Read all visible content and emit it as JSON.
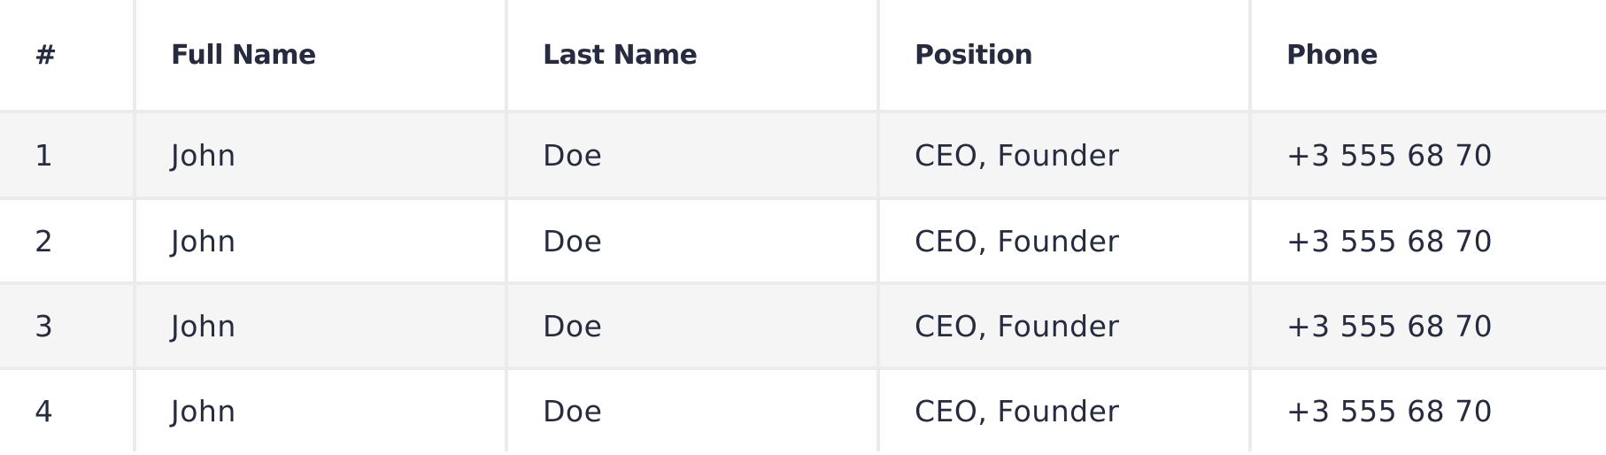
{
  "table": {
    "headers": [
      "#",
      "Full Name",
      "Last Name",
      "Position",
      "Phone"
    ],
    "rows": [
      [
        "1",
        "John",
        "Doe",
        "CEO, Founder",
        "+3 555 68 70"
      ],
      [
        "2",
        "John",
        "Doe",
        "CEO, Founder",
        "+3 555 68 70"
      ],
      [
        "3",
        "John",
        "Doe",
        "CEO, Founder",
        "+3 555 68 70"
      ],
      [
        "4",
        "John",
        "Doe",
        "CEO, Founder",
        "+3 555 68 70"
      ]
    ]
  },
  "colors": {
    "text": "#262b40",
    "grid": "#ebebeb",
    "row_odd": "#f5f5f5",
    "row_even": "#ffffff"
  }
}
